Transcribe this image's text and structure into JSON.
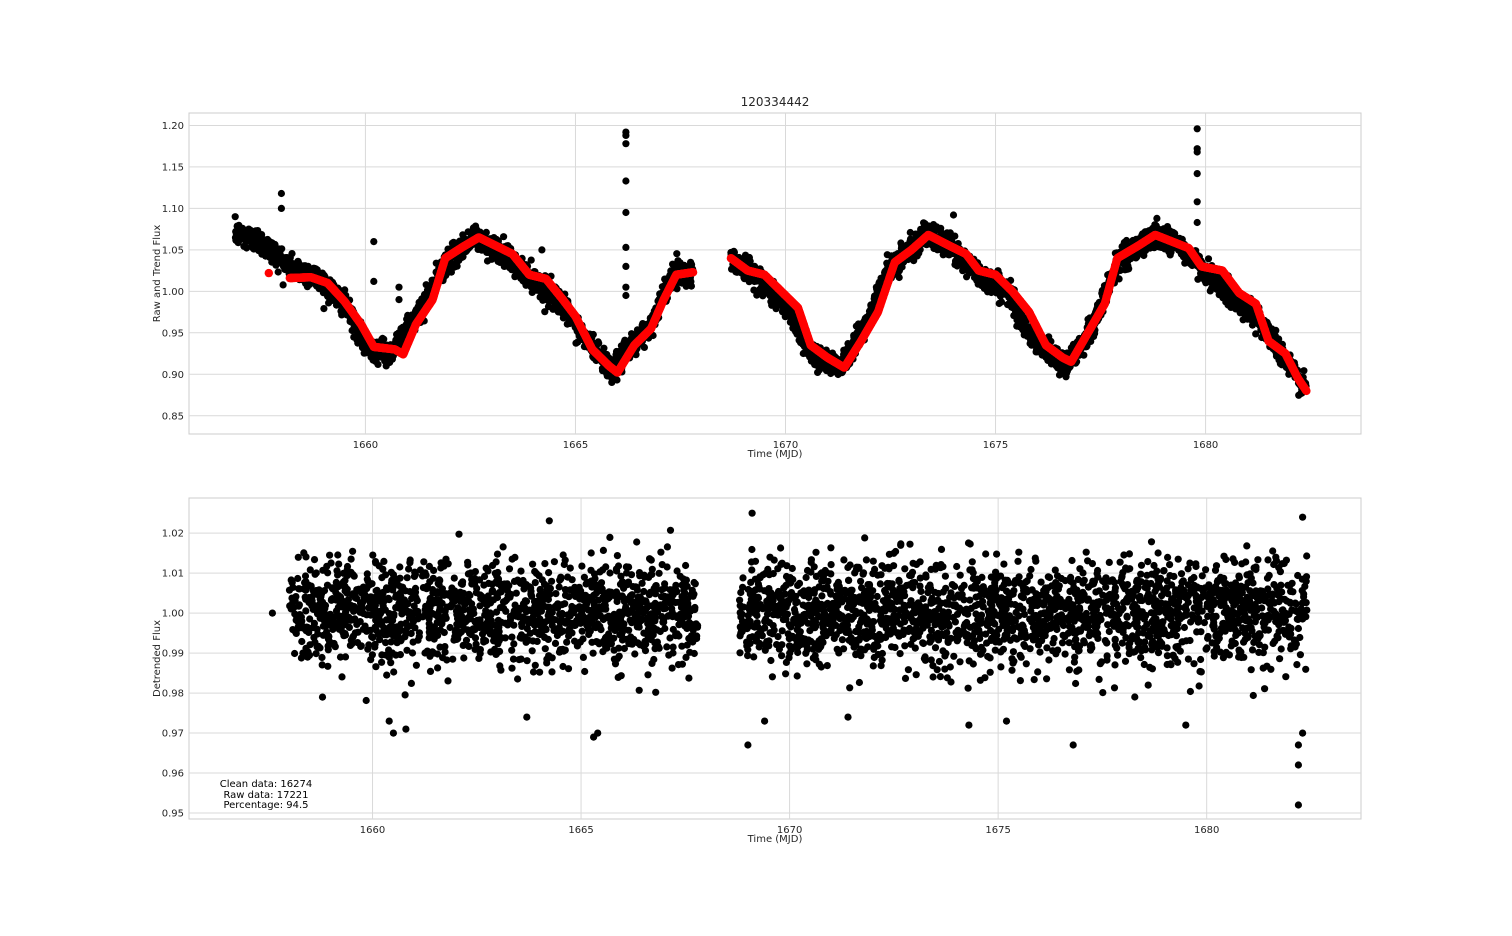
{
  "chart_data": [
    {
      "type": "scatter",
      "title": "120334442",
      "xlabel": "Time (MJD)",
      "ylabel": "Raw and Trend Flux",
      "xlim": [
        1655.8,
        1683.7
      ],
      "ylim": [
        0.828,
        1.215
      ],
      "xticks": [
        1660,
        1665,
        1670,
        1675,
        1680
      ],
      "yticks": [
        0.85,
        0.9,
        0.95,
        1.0,
        1.05,
        1.1,
        1.15,
        1.2
      ],
      "ytick_labels": [
        "0.85",
        "0.90",
        "0.95",
        "1.00",
        "1.05",
        "1.10",
        "1.15",
        "1.20"
      ],
      "grid": true,
      "data_range": {
        "x": [
          1656.9,
          1682.4
        ],
        "gap": [
          1667.8,
          1668.7
        ]
      },
      "series": [
        {
          "role": "raw",
          "color": "#000000",
          "noise_sd": 0.008,
          "envelope": [
            [
              1656.9,
              1.07
            ],
            [
              1657.5,
              1.06
            ],
            [
              1658.2,
              1.03
            ],
            [
              1658.9,
              1.015
            ],
            [
              1659.5,
              0.985
            ],
            [
              1660.0,
              0.935
            ],
            [
              1660.6,
              0.925
            ],
            [
              1661.3,
              0.975
            ],
            [
              1661.9,
              1.035
            ],
            [
              1662.6,
              1.065
            ],
            [
              1663.2,
              1.048
            ],
            [
              1663.9,
              1.018
            ],
            [
              1664.6,
              0.99
            ],
            [
              1665.2,
              0.945
            ],
            [
              1665.9,
              0.905
            ],
            [
              1666.2,
              0.925
            ],
            [
              1666.8,
              0.96
            ],
            [
              1667.3,
              1.02
            ],
            [
              1667.8,
              1.023
            ]
          ],
          "envelope_b": [
            [
              1668.7,
              1.04
            ],
            [
              1669.4,
              1.015
            ],
            [
              1670.1,
              0.975
            ],
            [
              1670.6,
              0.925
            ],
            [
              1671.3,
              0.91
            ],
            [
              1671.9,
              0.96
            ],
            [
              1672.5,
              1.03
            ],
            [
              1673.3,
              1.068
            ],
            [
              1673.9,
              1.055
            ],
            [
              1674.6,
              1.02
            ],
            [
              1675.3,
              1.0
            ],
            [
              1675.9,
              0.94
            ],
            [
              1676.7,
              0.912
            ],
            [
              1677.3,
              0.955
            ],
            [
              1677.9,
              1.035
            ],
            [
              1678.8,
              1.068
            ],
            [
              1679.3,
              1.058
            ],
            [
              1680.0,
              1.025
            ],
            [
              1680.6,
              0.995
            ],
            [
              1681.3,
              0.965
            ],
            [
              1681.8,
              0.925
            ],
            [
              1682.4,
              0.88
            ]
          ],
          "outliers": [
            [
              1658.0,
              1.118
            ],
            [
              1658.0,
              1.1
            ],
            [
              1660.2,
              1.06
            ],
            [
              1660.2,
              1.012
            ],
            [
              1660.8,
              1.005
            ],
            [
              1660.8,
              0.99
            ],
            [
              1664.2,
              1.05
            ],
            [
              1666.2,
              1.192
            ],
            [
              1666.2,
              1.188
            ],
            [
              1666.2,
              1.178
            ],
            [
              1666.2,
              1.133
            ],
            [
              1666.2,
              1.095
            ],
            [
              1666.2,
              1.053
            ],
            [
              1666.2,
              1.03
            ],
            [
              1666.2,
              1.005
            ],
            [
              1666.2,
              0.995
            ],
            [
              1674.0,
              1.092
            ],
            [
              1679.8,
              1.196
            ],
            [
              1679.8,
              1.172
            ],
            [
              1679.8,
              1.168
            ],
            [
              1679.8,
              1.142
            ],
            [
              1679.8,
              1.108
            ],
            [
              1679.8,
              1.083
            ]
          ]
        },
        {
          "role": "trend",
          "color": "#ff0000",
          "isolated": [
            [
              1657.7,
              1.022
            ]
          ],
          "points": [
            [
              1658.2,
              1.016
            ],
            [
              1658.7,
              1.017
            ],
            [
              1659.1,
              1.01
            ],
            [
              1659.5,
              0.988
            ],
            [
              1659.9,
              0.96
            ],
            [
              1660.2,
              0.933
            ],
            [
              1660.7,
              0.93
            ],
            [
              1660.9,
              0.924
            ],
            [
              1661.2,
              0.96
            ],
            [
              1661.6,
              0.99
            ],
            [
              1661.9,
              1.04
            ],
            [
              1662.3,
              1.053
            ],
            [
              1662.7,
              1.065
            ],
            [
              1663.1,
              1.055
            ],
            [
              1663.5,
              1.045
            ],
            [
              1663.9,
              1.02
            ],
            [
              1664.3,
              1.015
            ],
            [
              1664.7,
              0.99
            ],
            [
              1665.0,
              0.97
            ],
            [
              1665.4,
              0.93
            ],
            [
              1665.8,
              0.91
            ],
            [
              1666.0,
              0.902
            ],
            [
              1666.4,
              0.935
            ],
            [
              1666.8,
              0.955
            ],
            [
              1667.1,
              0.99
            ],
            [
              1667.4,
              1.02
            ],
            [
              1667.8,
              1.023
            ]
          ],
          "points_b": [
            [
              1668.7,
              1.04
            ],
            [
              1669.1,
              1.025
            ],
            [
              1669.5,
              1.02
            ],
            [
              1669.9,
              1.0
            ],
            [
              1670.3,
              0.98
            ],
            [
              1670.6,
              0.935
            ],
            [
              1671.0,
              0.92
            ],
            [
              1671.4,
              0.908
            ],
            [
              1671.8,
              0.94
            ],
            [
              1672.2,
              0.975
            ],
            [
              1672.6,
              1.035
            ],
            [
              1673.0,
              1.05
            ],
            [
              1673.4,
              1.068
            ],
            [
              1673.9,
              1.055
            ],
            [
              1674.3,
              1.045
            ],
            [
              1674.6,
              1.025
            ],
            [
              1675.0,
              1.02
            ],
            [
              1675.4,
              1.0
            ],
            [
              1675.8,
              0.975
            ],
            [
              1676.2,
              0.935
            ],
            [
              1676.6,
              0.92
            ],
            [
              1676.8,
              0.915
            ],
            [
              1677.2,
              0.95
            ],
            [
              1677.6,
              0.985
            ],
            [
              1677.9,
              1.04
            ],
            [
              1678.4,
              1.055
            ],
            [
              1678.8,
              1.068
            ],
            [
              1679.2,
              1.06
            ],
            [
              1679.6,
              1.052
            ],
            [
              1679.9,
              1.03
            ],
            [
              1680.4,
              1.025
            ],
            [
              1680.8,
              0.998
            ],
            [
              1681.2,
              0.985
            ],
            [
              1681.5,
              0.94
            ],
            [
              1681.9,
              0.925
            ],
            [
              1682.2,
              0.895
            ],
            [
              1682.4,
              0.88
            ]
          ]
        }
      ]
    },
    {
      "type": "scatter",
      "title": "",
      "xlabel": "Time (MJD)",
      "ylabel": "Detrended Flux",
      "xlim": [
        1655.6,
        1683.7
      ],
      "ylim": [
        0.9485,
        1.0288
      ],
      "xticks": [
        1660,
        1665,
        1670,
        1675,
        1680
      ],
      "yticks": [
        0.95,
        0.96,
        0.97,
        0.98,
        0.99,
        1.0,
        1.01,
        1.02
      ],
      "ytick_labels": [
        "0.95",
        "0.96",
        "0.97",
        "0.98",
        "0.99",
        "1.00",
        "1.01",
        "1.02"
      ],
      "grid": true,
      "data_range": {
        "x": [
          1658.0,
          1682.4
        ],
        "gap": [
          1667.8,
          1668.8
        ]
      },
      "series": [
        {
          "role": "detrended",
          "color": "#000000",
          "center": 1.0,
          "noise_sd": 0.0075,
          "clip": [
            0.975,
            1.024
          ],
          "outliers": [
            [
              1657.6,
              1.0
            ],
            [
              1658.8,
              0.979
            ],
            [
              1660.5,
              0.97
            ],
            [
              1660.8,
              0.971
            ],
            [
              1660.4,
              0.973
            ],
            [
              1663.7,
              0.974
            ],
            [
              1665.3,
              0.969
            ],
            [
              1665.4,
              0.97
            ],
            [
              1669.0,
              0.967
            ],
            [
              1669.4,
              0.973
            ],
            [
              1671.4,
              0.974
            ],
            [
              1674.3,
              0.972
            ],
            [
              1675.2,
              0.973
            ],
            [
              1676.8,
              0.967
            ],
            [
              1679.5,
              0.972
            ],
            [
              1682.2,
              0.952
            ],
            [
              1682.2,
              0.962
            ],
            [
              1682.2,
              0.967
            ],
            [
              1682.3,
              0.97
            ],
            [
              1682.3,
              1.024
            ],
            [
              1669.1,
              1.025
            ]
          ]
        }
      ],
      "annotation": [
        "Clean data: 16274",
        "Raw data: 17221",
        "Percentage: 94.5"
      ]
    }
  ]
}
